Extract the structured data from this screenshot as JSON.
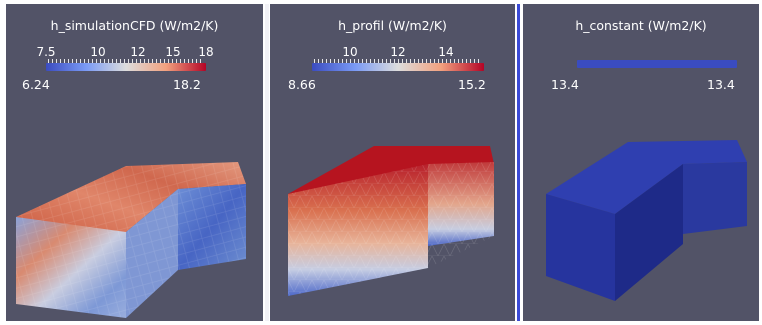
{
  "panels": [
    {
      "title": "h_simulationCFD (W/m2/K)",
      "ticks": [
        "7.5",
        "10",
        "12",
        "15",
        "18"
      ],
      "range": {
        "min": "6.24",
        "max": "18.2"
      }
    },
    {
      "title": "h_profil (W/m2/K)",
      "ticks": [
        "10",
        "12",
        "14"
      ],
      "range": {
        "min": "8.66",
        "max": "15.2"
      }
    },
    {
      "title": "h_constant (W/m2/K)",
      "ticks": [],
      "range": {
        "min": "13.4",
        "max": "13.4"
      }
    }
  ],
  "colors": {
    "background": "#525367",
    "cool": "#3a4cc0",
    "neutral": "#dddddd",
    "warm": "#b40426",
    "constant": "#2f3fb0"
  }
}
